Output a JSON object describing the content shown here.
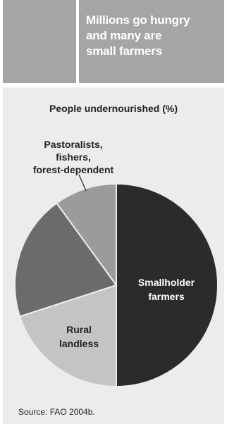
{
  "header": {
    "title": "Millions go hungry\nand many are\nsmall farmers"
  },
  "chart_data": {
    "type": "pie",
    "title": "People undernourished (%)",
    "slices": [
      {
        "label": "Smallholder farmers",
        "value": 50,
        "color": "#2b2b2b",
        "label_color": "#ffffff"
      },
      {
        "label": "Rural landless",
        "value": 20,
        "color": "#c4c4c4",
        "label_color": "#222222"
      },
      {
        "label": "Pastoralists, fishers, forest-dependent",
        "value": 10,
        "color": "#9b9b9b",
        "label_color": "#222222"
      },
      {
        "label": "",
        "value": 20,
        "color": "#6b6b6b",
        "label_color": "#222222"
      }
    ],
    "order_note": "clockwise from top: Smallholder farmers, Rural landless, unlabeled, Pastoralists"
  },
  "source": "Source: FAO 2004b."
}
